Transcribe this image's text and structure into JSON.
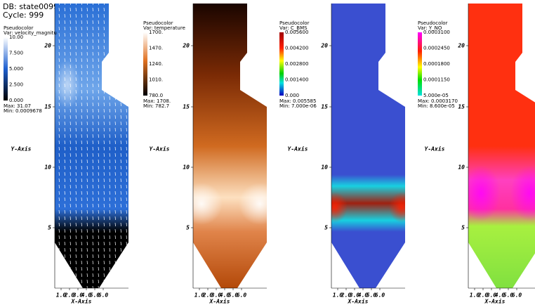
{
  "header": {
    "db": "DB: state00999",
    "cycle": "Cycle: 999"
  },
  "panels": [
    {
      "legend": {
        "title": "Pseudocolor",
        "var": "Var: velocity_magnitu",
        "ticks": [
          "10.00",
          "7.500",
          "5.000",
          "2.500",
          "0.000"
        ],
        "max": "Max: 31.07",
        "min": "Min: 0.0009678"
      }
    },
    {
      "legend": {
        "title": "Pseudocolor",
        "var": "Var: temperature",
        "ticks": [
          "1700.",
          "1470.",
          "1240.",
          "1010.",
          "780.0"
        ],
        "max": "Max: 1708.",
        "min": "Min: 782.7"
      }
    },
    {
      "legend": {
        "title": "Pseudocolor",
        "var": "Var: C_BMS",
        "ticks": [
          "0.005600",
          "0.004200",
          "0.002800",
          "0.001400",
          "0.000"
        ],
        "max": "Max: 0.005585",
        "min": "Min: 7.000e-06"
      }
    },
    {
      "legend": {
        "title": "Pseudocolor",
        "var": "Var: Y_NO",
        "ticks": [
          "0.0003100",
          "0.0002450",
          "0.0001800",
          "0.0001150",
          "5.000e-05"
        ],
        "max": "Max: 0.0003170",
        "min": "Min: 8.600e-05"
      }
    }
  ],
  "axes": {
    "y_label": "Y-Axis",
    "y_ticks": [
      "20",
      "15",
      "10",
      "5"
    ],
    "x_label": "X-Axis",
    "x_ticks": [
      "1.0",
      "2.0",
      "3.0",
      "4.0",
      "5.0",
      "6.0"
    ]
  }
}
